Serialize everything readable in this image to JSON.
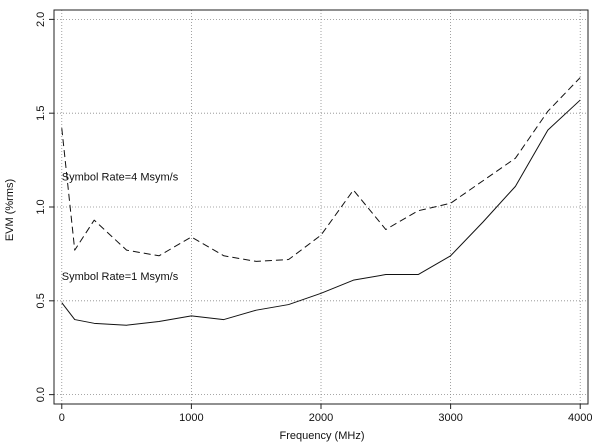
{
  "chart_data": {
    "type": "line",
    "title": "",
    "xlabel": "Frequency (MHz)",
    "ylabel": "EVM (%rms)",
    "xlim": [
      -60,
      4060
    ],
    "ylim": [
      -0.05,
      2.05
    ],
    "x_ticks": [
      0,
      1000,
      2000,
      3000,
      4000
    ],
    "y_ticks": [
      0.0,
      0.5,
      1.0,
      1.5,
      2.0
    ],
    "x_tick_labels": [
      "0",
      "1000",
      "2000",
      "3000",
      "4000"
    ],
    "y_tick_labels": [
      "0.0",
      "0.5",
      "1.0",
      "1.5",
      "2.0"
    ],
    "grid": true,
    "series": [
      {
        "name": "Symbol Rate=4 Msym/s",
        "line_style": "dashed",
        "color": "#111111",
        "x": [
          0,
          100,
          250,
          500,
          750,
          1000,
          1250,
          1500,
          1750,
          2000,
          2250,
          2500,
          2750,
          3000,
          3250,
          3500,
          3750,
          4000
        ],
        "y": [
          1.42,
          0.77,
          0.93,
          0.77,
          0.74,
          0.84,
          0.74,
          0.71,
          0.72,
          0.85,
          1.09,
          0.88,
          0.98,
          1.02,
          1.14,
          1.26,
          1.51,
          1.69
        ]
      },
      {
        "name": "Symbol Rate=1 Msym/s",
        "line_style": "solid",
        "color": "#111111",
        "x": [
          0,
          100,
          250,
          500,
          750,
          1000,
          1250,
          1500,
          1750,
          2000,
          2250,
          2500,
          2750,
          3000,
          3250,
          3500,
          3750,
          4000
        ],
        "y": [
          0.49,
          0.4,
          0.38,
          0.37,
          0.39,
          0.42,
          0.4,
          0.45,
          0.48,
          0.54,
          0.61,
          0.64,
          0.64,
          0.74,
          0.92,
          1.11,
          1.41,
          1.57
        ]
      }
    ],
    "annotations": [
      {
        "text": "Symbol Rate=4 Msym/s",
        "x": 0,
        "y": 1.14
      },
      {
        "text": "Symbol Rate=1 Msym/s",
        "x": 0,
        "y": 0.61
      }
    ]
  }
}
